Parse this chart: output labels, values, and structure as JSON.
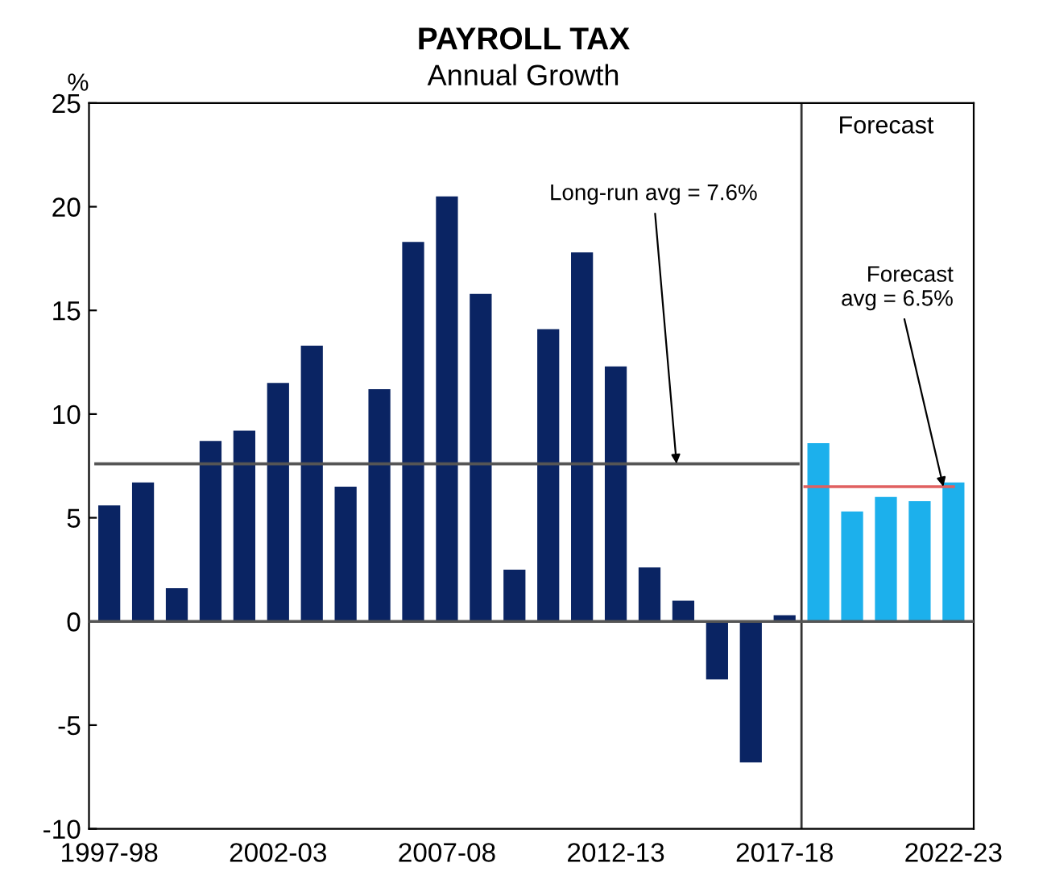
{
  "chart_data": {
    "type": "bar",
    "title": "PAYROLL TAX",
    "subtitle": "Annual Growth",
    "ylabel": "%",
    "categories": [
      "1997-98",
      null,
      null,
      null,
      null,
      "2002-03",
      null,
      null,
      null,
      null,
      "2007-08",
      null,
      null,
      null,
      null,
      "2012-13",
      null,
      null,
      null,
      null,
      "2017-18",
      null,
      null,
      null,
      null,
      "2022-23"
    ],
    "series": [
      {
        "color": "#0a2463",
        "values": [
          5.6,
          6.7,
          1.6,
          8.7,
          9.2,
          11.5,
          13.3,
          6.5,
          11.2,
          18.3,
          20.5,
          15.8,
          2.5,
          14.1,
          17.8,
          12.3,
          2.6,
          1.0,
          -2.8,
          -6.8,
          0.3,
          null,
          null,
          null,
          null,
          null
        ]
      },
      {
        "color": "#1cb0ec",
        "values": [
          null,
          null,
          null,
          null,
          null,
          null,
          null,
          null,
          null,
          null,
          null,
          null,
          null,
          null,
          null,
          null,
          null,
          null,
          null,
          null,
          null,
          8.6,
          5.3,
          6.0,
          5.8,
          6.7
        ]
      }
    ],
    "ylim": [
      -10,
      25
    ],
    "yticks": [
      -10,
      -5,
      0,
      5,
      10,
      15,
      20,
      25
    ],
    "grid": false,
    "ref_lines": [
      {
        "axis": "y",
        "value": 7.6,
        "label": "Long-run avg = 7.6%",
        "color": "#555555"
      },
      {
        "axis": "y",
        "value": 6.5,
        "label": "Forecast\navg = 6.5%",
        "color": "#e06060"
      }
    ],
    "annotations": [
      "Forecast"
    ]
  }
}
